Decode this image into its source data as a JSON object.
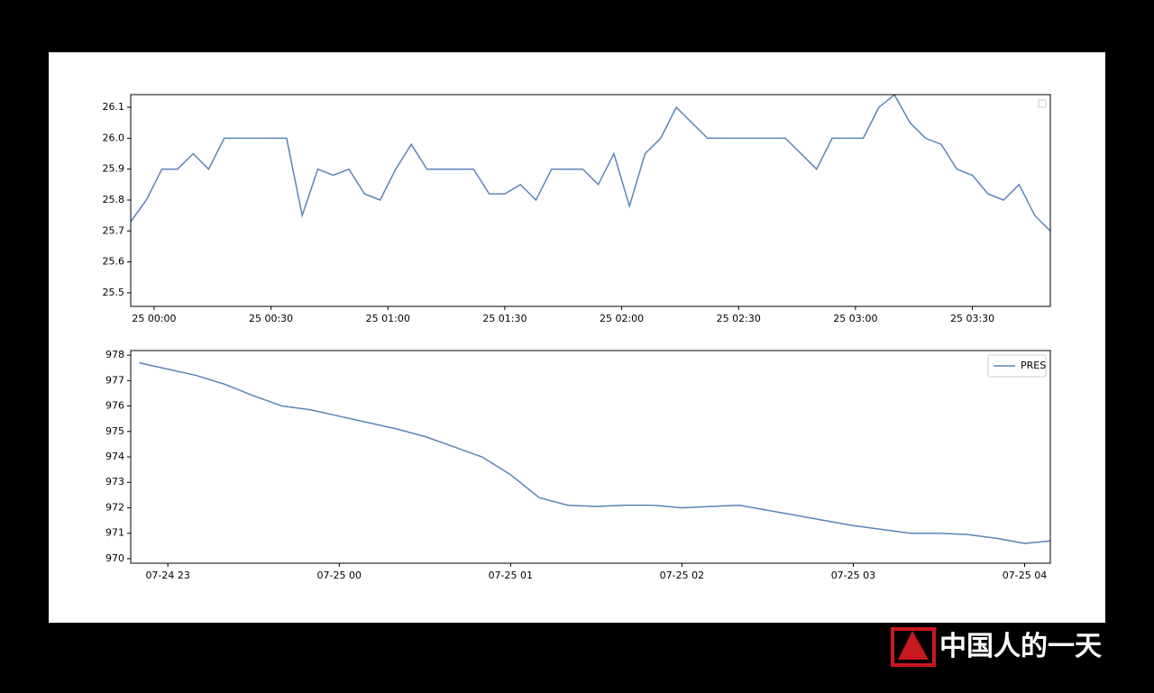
{
  "chart_data": [
    {
      "type": "line",
      "x": [
        "24 23:54",
        "24 23:58",
        "25 00:02",
        "25 00:06",
        "25 00:10",
        "25 00:14",
        "25 00:18",
        "25 00:22",
        "25 00:26",
        "25 00:30",
        "25 00:34",
        "25 00:38",
        "25 00:42",
        "25 00:46",
        "25 00:50",
        "25 00:54",
        "25 00:58",
        "25 01:02",
        "25 01:06",
        "25 01:10",
        "25 01:14",
        "25 01:18",
        "25 01:22",
        "25 01:26",
        "25 01:30",
        "25 01:34",
        "25 01:38",
        "25 01:42",
        "25 01:46",
        "25 01:50",
        "25 01:54",
        "25 01:58",
        "25 02:02",
        "25 02:06",
        "25 02:10",
        "25 02:14",
        "25 02:18",
        "25 02:22",
        "25 02:26",
        "25 02:30",
        "25 02:34",
        "25 02:38",
        "25 02:42",
        "25 02:46",
        "25 02:50",
        "25 02:54",
        "25 02:58",
        "25 03:02",
        "25 03:06",
        "25 03:10",
        "25 03:14",
        "25 03:18",
        "25 03:22",
        "25 03:26",
        "25 03:30",
        "25 03:34",
        "25 03:38",
        "25 03:42",
        "25 03:46",
        "25 03:50"
      ],
      "series": [
        {
          "color": "#5b84b8",
          "values": [
            25.73,
            25.8,
            25.9,
            25.9,
            25.95,
            25.9,
            26.0,
            26.0,
            26.0,
            26.0,
            26.0,
            25.75,
            25.9,
            25.88,
            25.9,
            25.82,
            25.8,
            25.9,
            25.98,
            25.9,
            25.9,
            25.9,
            25.9,
            25.82,
            25.82,
            25.85,
            25.8,
            25.9,
            25.9,
            25.9,
            25.85,
            25.95,
            25.78,
            25.95,
            26.0,
            26.1,
            26.05,
            26.0,
            26.0,
            26.0,
            26.0,
            26.0,
            26.0,
            25.95,
            25.9,
            26.0,
            26.0,
            26.0,
            26.1,
            26.14,
            26.05,
            26.0,
            25.98,
            25.9,
            25.88,
            25.82,
            25.8,
            25.85,
            25.75,
            25.7
          ]
        }
      ],
      "xlim": [
        "24 23:54",
        "25 03:50"
      ],
      "xticks": [
        "25 00:00",
        "25 00:30",
        "25 01:00",
        "25 01:30",
        "25 02:00",
        "25 02:30",
        "25 03:00",
        "25 03:30"
      ],
      "ylim": [
        25.456,
        26.141
      ],
      "yticks": [
        25.5,
        25.6,
        25.7,
        25.8,
        25.9,
        {
          "value": 26,
          "label": "26.0"
        },
        26.1
      ],
      "grid": false
    },
    {
      "type": "line",
      "x": [
        "07-24 22:50",
        "07-24 23:00",
        "07-24 23:10",
        "07-24 23:20",
        "07-24 23:30",
        "07-24 23:40",
        "07-24 23:50",
        "07-25 00:00",
        "07-25 00:10",
        "07-25 00:20",
        "07-25 00:30",
        "07-25 00:40",
        "07-25 00:50",
        "07-25 01:00",
        "07-25 01:10",
        "07-25 01:20",
        "07-25 01:30",
        "07-25 01:40",
        "07-25 01:50",
        "07-25 02:00",
        "07-25 02:10",
        "07-25 02:20",
        "07-25 02:30",
        "07-25 02:40",
        "07-25 02:50",
        "07-25 03:00",
        "07-25 03:10",
        "07-25 03:20",
        "07-25 03:30",
        "07-25 03:40",
        "07-25 03:50",
        "07-25 04:00",
        "07-25 04:09"
      ],
      "series": [
        {
          "name": "PRES",
          "color": "#5b84b8",
          "values": [
            977.7,
            977.45,
            977.2,
            976.85,
            976.4,
            976.0,
            975.85,
            975.6,
            975.35,
            975.1,
            974.8,
            974.4,
            974.0,
            973.3,
            972.4,
            972.1,
            972.05,
            972.1,
            972.1,
            972.0,
            972.05,
            972.1,
            971.9,
            971.7,
            971.5,
            971.3,
            971.15,
            971.0,
            971.0,
            970.95,
            970.8,
            970.6,
            970.7
          ]
        }
      ],
      "xlim": [
        "07-24 22:47",
        "07-25 04:09"
      ],
      "xticks": [
        "07-24 23",
        "07-25 00",
        "07-25 01",
        "07-25 02",
        "07-25 03",
        "07-25 04"
      ],
      "ylim": [
        969.82,
        978.18
      ],
      "yticks": [
        970,
        971,
        972,
        973,
        974,
        975,
        976,
        977,
        978
      ],
      "grid": false,
      "legend": "upper right"
    }
  ],
  "watermark": "中国人的一天"
}
